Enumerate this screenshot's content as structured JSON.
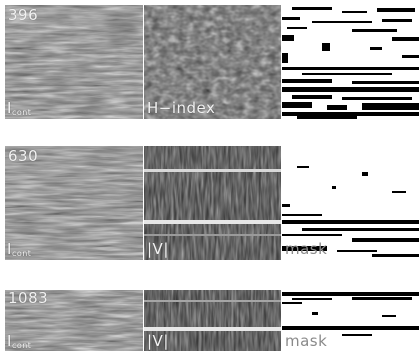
{
  "rows": [
    {
      "number": "396",
      "labels": {
        "intensity": "I",
        "intensity_sub": "cont",
        "middle": "H−index",
        "right": ""
      },
      "panels": [
        "continuum-intensity",
        "h-index",
        "mask"
      ]
    },
    {
      "number": "630",
      "labels": {
        "intensity": "I",
        "intensity_sub": "cont",
        "middle": "|V|",
        "right": "mask"
      },
      "panels": [
        "continuum-intensity",
        "abs-v",
        "mask"
      ]
    },
    {
      "number": "1083",
      "labels": {
        "intensity": "I",
        "intensity_sub": "cont",
        "middle": "|V|",
        "right": "mask"
      },
      "panels": [
        "continuum-intensity",
        "abs-v",
        "mask"
      ]
    }
  ],
  "colors": {
    "background": "#ffffff",
    "label": "#f2f2f2",
    "mask_label": "#8a8a8a"
  }
}
